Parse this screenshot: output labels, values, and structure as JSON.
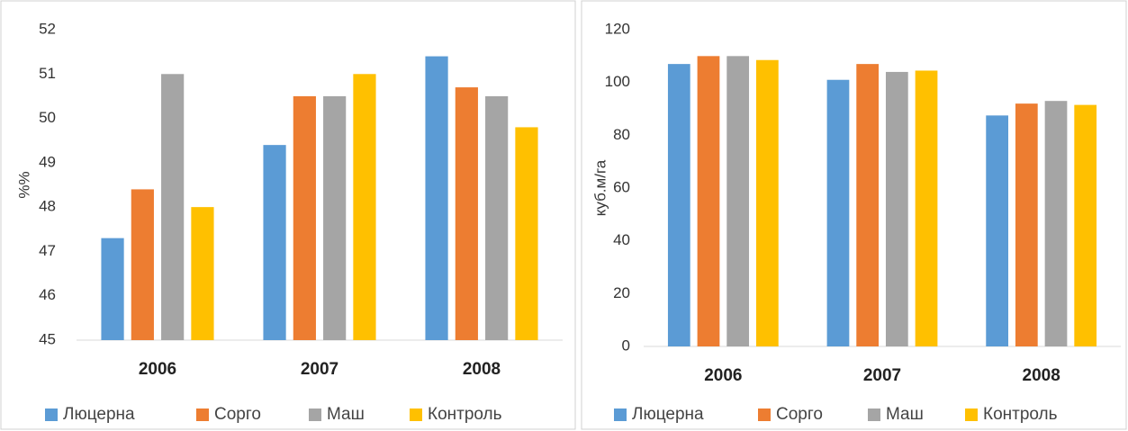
{
  "chart_data": [
    {
      "type": "bar",
      "y_label": "%%",
      "categories": [
        "2006",
        "2007",
        "2008"
      ],
      "series": [
        {
          "name": "Люцерна",
          "color": "#5b9bd5",
          "values": [
            47.3,
            49.4,
            51.4
          ]
        },
        {
          "name": "Сорго",
          "color": "#ed7d31",
          "values": [
            48.4,
            50.5,
            50.7
          ]
        },
        {
          "name": "Маш",
          "color": "#a5a5a5",
          "values": [
            51.0,
            50.5,
            50.5
          ]
        },
        {
          "name": "Контроль",
          "color": "#ffc000",
          "values": [
            48.0,
            51.0,
            49.8
          ]
        }
      ],
      "ylim": [
        45,
        52
      ],
      "yticks": [
        45,
        46,
        47,
        48,
        49,
        50,
        51,
        52
      ],
      "grid": false,
      "legend": "bottom"
    },
    {
      "type": "bar",
      "y_label": "куб.м/га",
      "categories": [
        "2006",
        "2007",
        "2008"
      ],
      "series": [
        {
          "name": "Люцерна",
          "color": "#5b9bd5",
          "values": [
            107,
            101,
            87.5
          ]
        },
        {
          "name": "Сорго",
          "color": "#ed7d31",
          "values": [
            110,
            107,
            92
          ]
        },
        {
          "name": "Маш",
          "color": "#a5a5a5",
          "values": [
            110,
            104,
            93
          ]
        },
        {
          "name": "Контроль",
          "color": "#ffc000",
          "values": [
            108.5,
            104.5,
            91.5
          ]
        }
      ],
      "ylim": [
        0,
        120
      ],
      "yticks": [
        0,
        20,
        40,
        60,
        80,
        100,
        120
      ],
      "grid": false,
      "legend": "bottom"
    }
  ]
}
